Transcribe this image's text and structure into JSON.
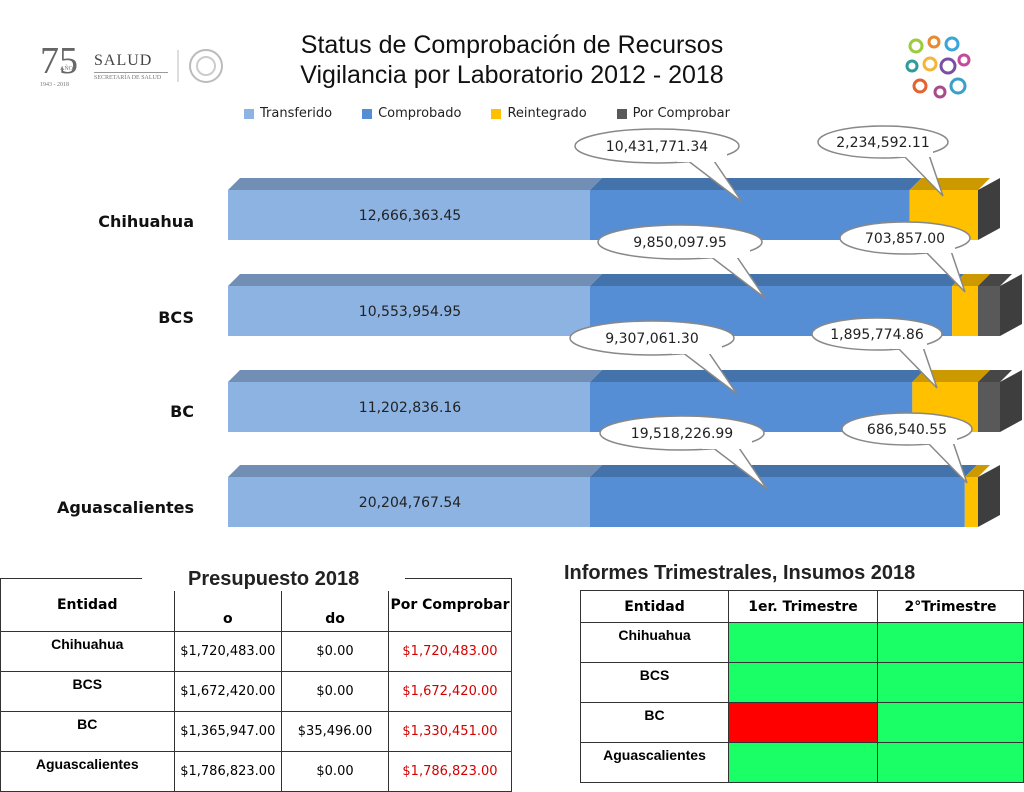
{
  "header": {
    "title_line1": "Status de Comprobación de Recursos",
    "title_line2": "Vigilancia por Laboratorio 2012 - 2018",
    "logo_number": "75",
    "logo_small": "AÑOS",
    "logo_years": "1943 - 2018",
    "logo_salud": "SALUD",
    "logo_secretaria": "SECRETARÍA DE SALUD"
  },
  "chart_data": {
    "type": "bar",
    "orientation": "horizontal",
    "stacked": true,
    "categories": [
      "Chihuahua",
      "BCS",
      "BC",
      "Aguascalientes"
    ],
    "series": [
      {
        "name": "Transferido",
        "color": "#8db3e2",
        "values": [
          12666363.45,
          10553954.95,
          11202836.16,
          20204767.54
        ]
      },
      {
        "name": "Comprobado",
        "color": "#558ed5",
        "values": [
          10431771.34,
          9850097.95,
          9307061.3,
          19518226.99
        ]
      },
      {
        "name": "Reintegrado",
        "color": "#ffc000",
        "values": [
          2234592.11,
          703857.0,
          1895774.86,
          686540.55
        ]
      },
      {
        "name": "Por Comprobar",
        "color": "#595959",
        "values": [
          0,
          0,
          0,
          0
        ]
      }
    ],
    "data_labels": {
      "transferido": [
        "12,666,363.45",
        "10,553,954.95",
        "11,202,836.16",
        "20,204,767.54"
      ],
      "comprobado": [
        "10,431,771.34",
        "9,850,097.95",
        "9,307,061.30",
        "19,518,226.99"
      ],
      "reintegrado": [
        "2,234,592.11",
        "703,857.00",
        "1,895,774.86",
        "686,540.55"
      ]
    },
    "legend_position": "top"
  },
  "presupuesto": {
    "title": "Presupuesto 2018",
    "headers": [
      "Entidad",
      "o",
      "do",
      "Por Comprobar"
    ],
    "rows": [
      {
        "entidad": "Chihuahua",
        "a": "$1,720,483.00",
        "b": "$0.00",
        "c": "$1,720,483.00"
      },
      {
        "entidad": "BCS",
        "a": "$1,672,420.00",
        "b": "$0.00",
        "c": "$1,672,420.00"
      },
      {
        "entidad": "BC",
        "a": "$1,365,947.00",
        "b": "$35,496.00",
        "c": "$1,330,451.00"
      },
      {
        "entidad": "Aguascalientes",
        "a": "$1,786,823.00",
        "b": "$0.00",
        "c": "$1,786,823.00"
      }
    ]
  },
  "informes": {
    "title": "Informes Trimestrales, Insumos 2018",
    "headers": [
      "Entidad",
      "1er. Trimestre",
      "2°Trimestre"
    ],
    "rows": [
      {
        "entidad": "Chihuahua",
        "t1": "#1aff66",
        "t2": "#1aff66"
      },
      {
        "entidad": "BCS",
        "t1": "#1aff66",
        "t2": "#1aff66"
      },
      {
        "entidad": "BC",
        "t1": "#ff0000",
        "t2": "#1aff66"
      },
      {
        "entidad": "Aguascalientes",
        "t1": "#1aff66",
        "t2": "#1aff66"
      }
    ]
  }
}
